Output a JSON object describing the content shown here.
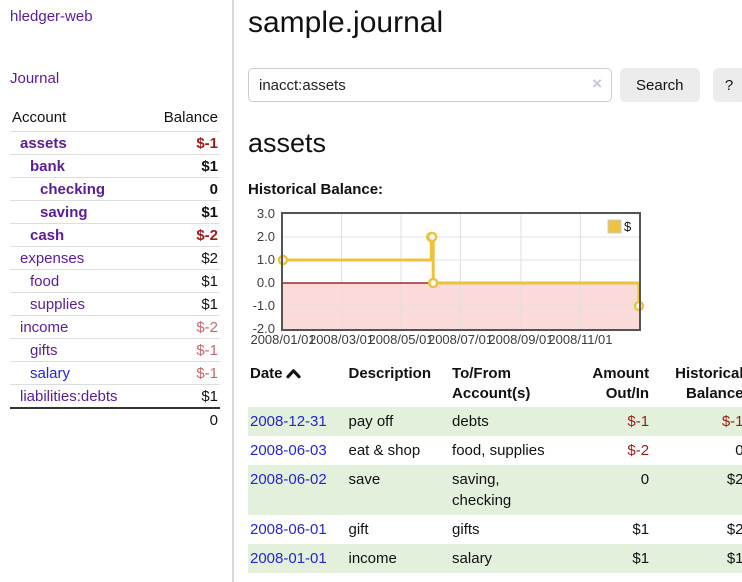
{
  "colors": {
    "link_purple": "#5a1d96",
    "link_blue": "#2323dd",
    "date_link_blue": "#2525cf",
    "negative_strong": "#9b1a1a",
    "negative_soft": "#c4686b",
    "row_stripe_green": "#e3f0dc",
    "button_gray": "#ececec",
    "chart_line_gold": "#edc240",
    "chart_negative_region": "#fbdada",
    "chart_zero_line": "#8b0000",
    "chart_border": "#545454"
  },
  "sidebar": {
    "brand": "hledger-web",
    "journal_link": "Journal",
    "accounts_table": {
      "headers": {
        "account": "Account",
        "balance": "Balance"
      },
      "rows": [
        {
          "name": "assets",
          "indent": 1,
          "bold": true,
          "balance": "$-1",
          "neg": "strong"
        },
        {
          "name": "bank",
          "indent": 2,
          "bold": true,
          "balance": "$1",
          "neg": "none"
        },
        {
          "name": "checking",
          "indent": 3,
          "bold": true,
          "balance": "0",
          "neg": "none"
        },
        {
          "name": "saving",
          "indent": 3,
          "bold": true,
          "balance": "$1",
          "neg": "none"
        },
        {
          "name": "cash",
          "indent": 2,
          "bold": true,
          "balance": "$-2",
          "neg": "strong"
        },
        {
          "name": "expenses",
          "indent": 1,
          "bold": false,
          "balance": "$2",
          "neg": "none"
        },
        {
          "name": "food",
          "indent": 2,
          "bold": false,
          "balance": "$1",
          "neg": "none"
        },
        {
          "name": "supplies",
          "indent": 2,
          "bold": false,
          "balance": "$1",
          "neg": "none"
        },
        {
          "name": "income",
          "indent": 1,
          "bold": false,
          "balance": "$-2",
          "neg": "soft"
        },
        {
          "name": "gifts",
          "indent": 2,
          "bold": false,
          "balance": "$-1",
          "neg": "soft"
        },
        {
          "name": "salary",
          "indent": 2,
          "bold": false,
          "balance": "$-1",
          "neg": "soft",
          "link_style": "unvisited"
        },
        {
          "name": "liabilities:debts",
          "indent": 1,
          "bold": false,
          "balance": "$1",
          "neg": "none"
        }
      ],
      "total": "0"
    }
  },
  "main": {
    "title": "sample.journal",
    "search": {
      "value": "inacct:assets",
      "clear_icon": "×",
      "button_label": "Search",
      "help_label": "?"
    },
    "account_heading": "assets",
    "chart_label": "Historical Balance:"
  },
  "chart_data": {
    "type": "line",
    "title": "Historical Balance",
    "step": true,
    "series": [
      {
        "name": "$",
        "points": [
          [
            "2008-01-01",
            1
          ],
          [
            "2008-06-01",
            2
          ],
          [
            "2008-06-02",
            2
          ],
          [
            "2008-06-03",
            0
          ],
          [
            "2008-12-31",
            -1
          ]
        ]
      }
    ],
    "x_ticks": [
      "2008/01/01",
      "2008/03/01",
      "2008/05/01",
      "2008/07/01",
      "2008/09/01",
      "2008/11/01"
    ],
    "y_ticks": [
      "3.0",
      "2.0",
      "1.0",
      "0.0",
      "-1.0",
      "-2.0"
    ],
    "xlim": [
      "2008-01-01",
      "2008-12-31"
    ],
    "ylim": [
      -2,
      3
    ],
    "grid": true,
    "legend_position": "top-right"
  },
  "register": {
    "headers": {
      "date": "Date",
      "description": "Description",
      "tofrom_line1": "To/From",
      "tofrom_line2": "Account(s)",
      "amount_line1": "Amount",
      "amount_line2": "Out/In",
      "balance_line1": "Historical",
      "balance_line2": "Balance"
    },
    "rows": [
      {
        "date": "2008-12-31",
        "description": "pay off",
        "accounts": "debts",
        "amount": "$-1",
        "balance": "$-1",
        "amount_neg": true,
        "balance_neg": true
      },
      {
        "date": "2008-06-03",
        "description": "eat & shop",
        "accounts": "food, supplies",
        "amount": "$-2",
        "balance": "0",
        "amount_neg": true,
        "balance_neg": false
      },
      {
        "date": "2008-06-02",
        "description": "save",
        "accounts": "saving,\nchecking",
        "amount": "0",
        "balance": "$2",
        "amount_neg": false,
        "balance_neg": false
      },
      {
        "date": "2008-06-01",
        "description": "gift",
        "accounts": "gifts",
        "amount": "$1",
        "balance": "$2",
        "amount_neg": false,
        "balance_neg": false
      },
      {
        "date": "2008-01-01",
        "description": "income",
        "accounts": "salary",
        "amount": "$1",
        "balance": "$1",
        "amount_neg": false,
        "balance_neg": false
      }
    ]
  }
}
